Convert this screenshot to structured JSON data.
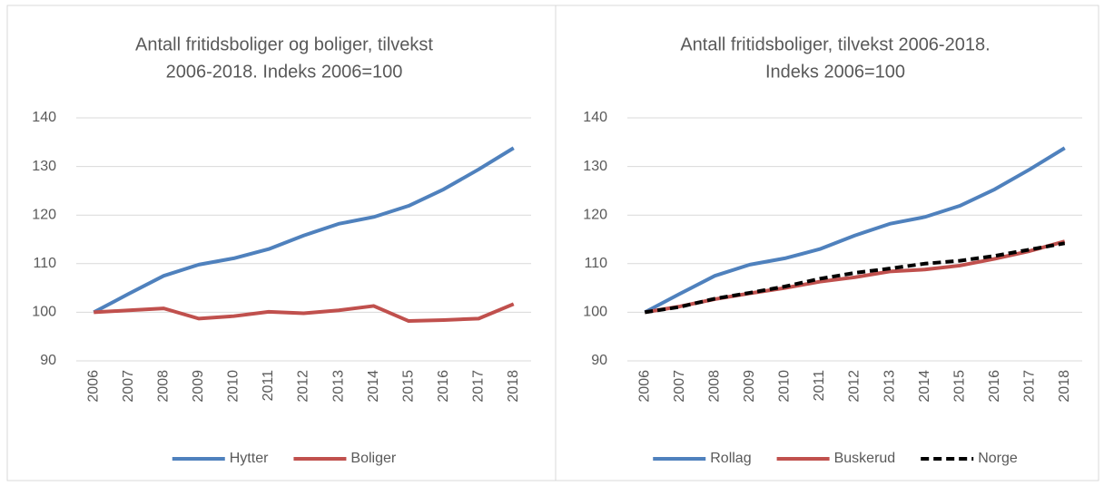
{
  "chart_data": [
    {
      "type": "line",
      "title": [
        "Antall fritidsboliger og boliger, tilvekst",
        "2006-2018. Indeks 2006=100"
      ],
      "categories": [
        "2006",
        "2007",
        "2008",
        "2009",
        "2010",
        "2011",
        "2012",
        "2013",
        "2014",
        "2015",
        "2016",
        "2017",
        "2018"
      ],
      "series": [
        {
          "name": "Hytter",
          "color": "#4f81bd",
          "dashed": false,
          "values": [
            100,
            103.8,
            107.5,
            109.8,
            111.1,
            113,
            115.8,
            118.2,
            119.6,
            121.9,
            125.3,
            129.4,
            133.8
          ]
        },
        {
          "name": "Boliger",
          "color": "#c0504d",
          "dashed": false,
          "values": [
            100,
            100.4,
            100.8,
            98.7,
            99.2,
            100.1,
            99.8,
            100.4,
            101.3,
            98.2,
            98.4,
            98.7,
            101.7
          ]
        }
      ],
      "ylim": [
        90,
        140
      ],
      "yticks": [
        90,
        100,
        110,
        120,
        130,
        140
      ],
      "grid": true,
      "legend": "bottom"
    },
    {
      "type": "line",
      "title": [
        "Antall fritidsboliger, tilvekst 2006-2018.",
        "Indeks 2006=100"
      ],
      "categories": [
        "2006",
        "2007",
        "2008",
        "2009",
        "2010",
        "2011",
        "2012",
        "2013",
        "2014",
        "2015",
        "2016",
        "2017",
        "2018"
      ],
      "series": [
        {
          "name": "Rollag",
          "color": "#4f81bd",
          "dashed": false,
          "values": [
            100,
            103.8,
            107.5,
            109.8,
            111.1,
            113,
            115.8,
            118.2,
            119.6,
            121.9,
            125.3,
            129.4,
            133.8
          ]
        },
        {
          "name": "Buskerud",
          "color": "#c0504d",
          "dashed": false,
          "values": [
            100,
            101.2,
            102.7,
            103.9,
            105.0,
            106.3,
            107.2,
            108.4,
            108.8,
            109.6,
            111.0,
            112.6,
            114.6
          ]
        },
        {
          "name": "Norge",
          "color": "#000000",
          "dashed": true,
          "values": [
            100,
            101.1,
            102.8,
            104.0,
            105.3,
            106.9,
            108.1,
            109.0,
            110.0,
            110.6,
            111.6,
            112.9,
            114.2
          ]
        }
      ],
      "ylim": [
        90,
        140
      ],
      "yticks": [
        90,
        100,
        110,
        120,
        130,
        140
      ],
      "grid": true,
      "legend": "bottom"
    }
  ]
}
